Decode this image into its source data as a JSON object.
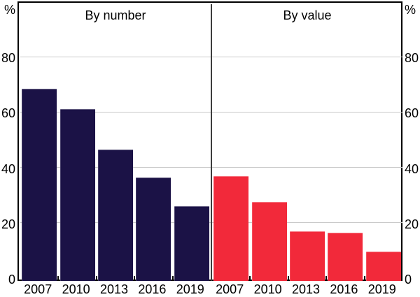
{
  "chart_data": {
    "type": "bar",
    "unit": "%",
    "categories": [
      "2007",
      "2010",
      "2013",
      "2016",
      "2019"
    ],
    "y_ticks": [
      0,
      20,
      40,
      60,
      80
    ],
    "ylim": [
      0,
      100
    ],
    "grid": true,
    "legend_position": "none",
    "panels": [
      {
        "title": "By number",
        "color": "#1b1246",
        "values": [
          69.5,
          62,
          47.5,
          37.5,
          27
        ]
      },
      {
        "title": "By value",
        "color": "#f2293a",
        "values": [
          38,
          28.5,
          18,
          17.5,
          10.5
        ]
      }
    ]
  },
  "colors": {
    "bar_navy": "#1b1246",
    "bar_red": "#f2293a",
    "gridline": "#c9c9c9",
    "axis": "#000000",
    "panel_divider": "#3d3d3d",
    "background": "#ffffff"
  }
}
